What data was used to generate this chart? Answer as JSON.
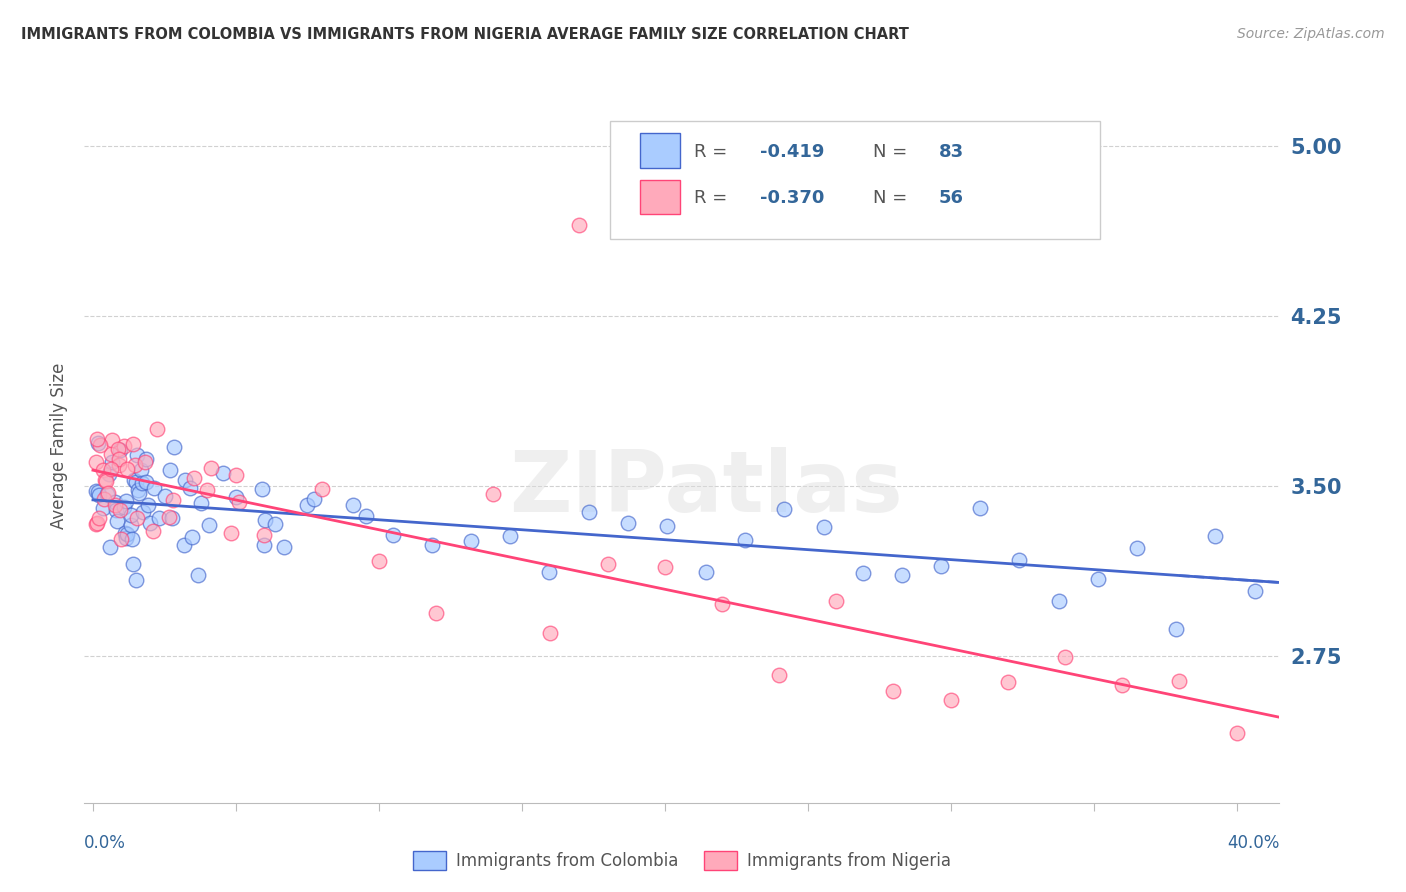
{
  "title": "IMMIGRANTS FROM COLOMBIA VS IMMIGRANTS FROM NIGERIA AVERAGE FAMILY SIZE CORRELATION CHART",
  "source": "Source: ZipAtlas.com",
  "ylabel": "Average Family Size",
  "yticks": [
    2.75,
    3.5,
    4.25,
    5.0
  ],
  "ymin": 2.1,
  "ymax": 5.25,
  "xmin": -0.003,
  "xmax": 0.415,
  "colombia_color": "#aaccff",
  "nigeria_color": "#ffaabb",
  "colombia_line_color": "#4466cc",
  "nigeria_line_color": "#ff4477",
  "colombia_R": -0.419,
  "colombia_N": 83,
  "nigeria_R": -0.37,
  "nigeria_N": 56,
  "watermark": "ZIPatlas",
  "grid_color": "#cccccc",
  "title_color": "#333333",
  "tick_color": "#336699",
  "legend_text_color": "#336699"
}
